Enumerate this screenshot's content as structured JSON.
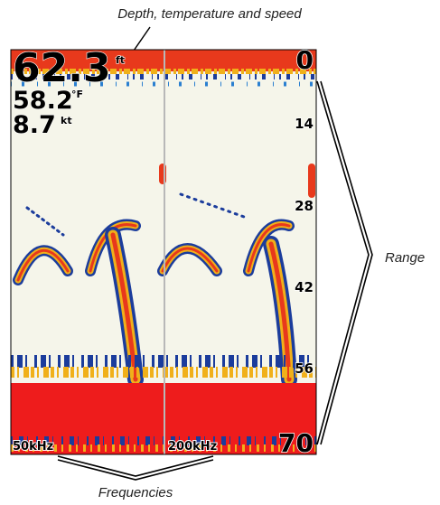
{
  "annotations": {
    "depth_temperature_speed": "Depth, temperature and speed",
    "range": "Range",
    "frequencies": "Frequencies"
  },
  "screen": {
    "depth": {
      "value": "62.3",
      "unit": "ft"
    },
    "temperature": {
      "value": "58.2",
      "unit": "°F"
    },
    "speed": {
      "value": "8.7",
      "unit": "kt"
    },
    "range": [
      0,
      14,
      28,
      42,
      56,
      70
    ],
    "frequencies": [
      "50kHz",
      "200kHz"
    ]
  }
}
